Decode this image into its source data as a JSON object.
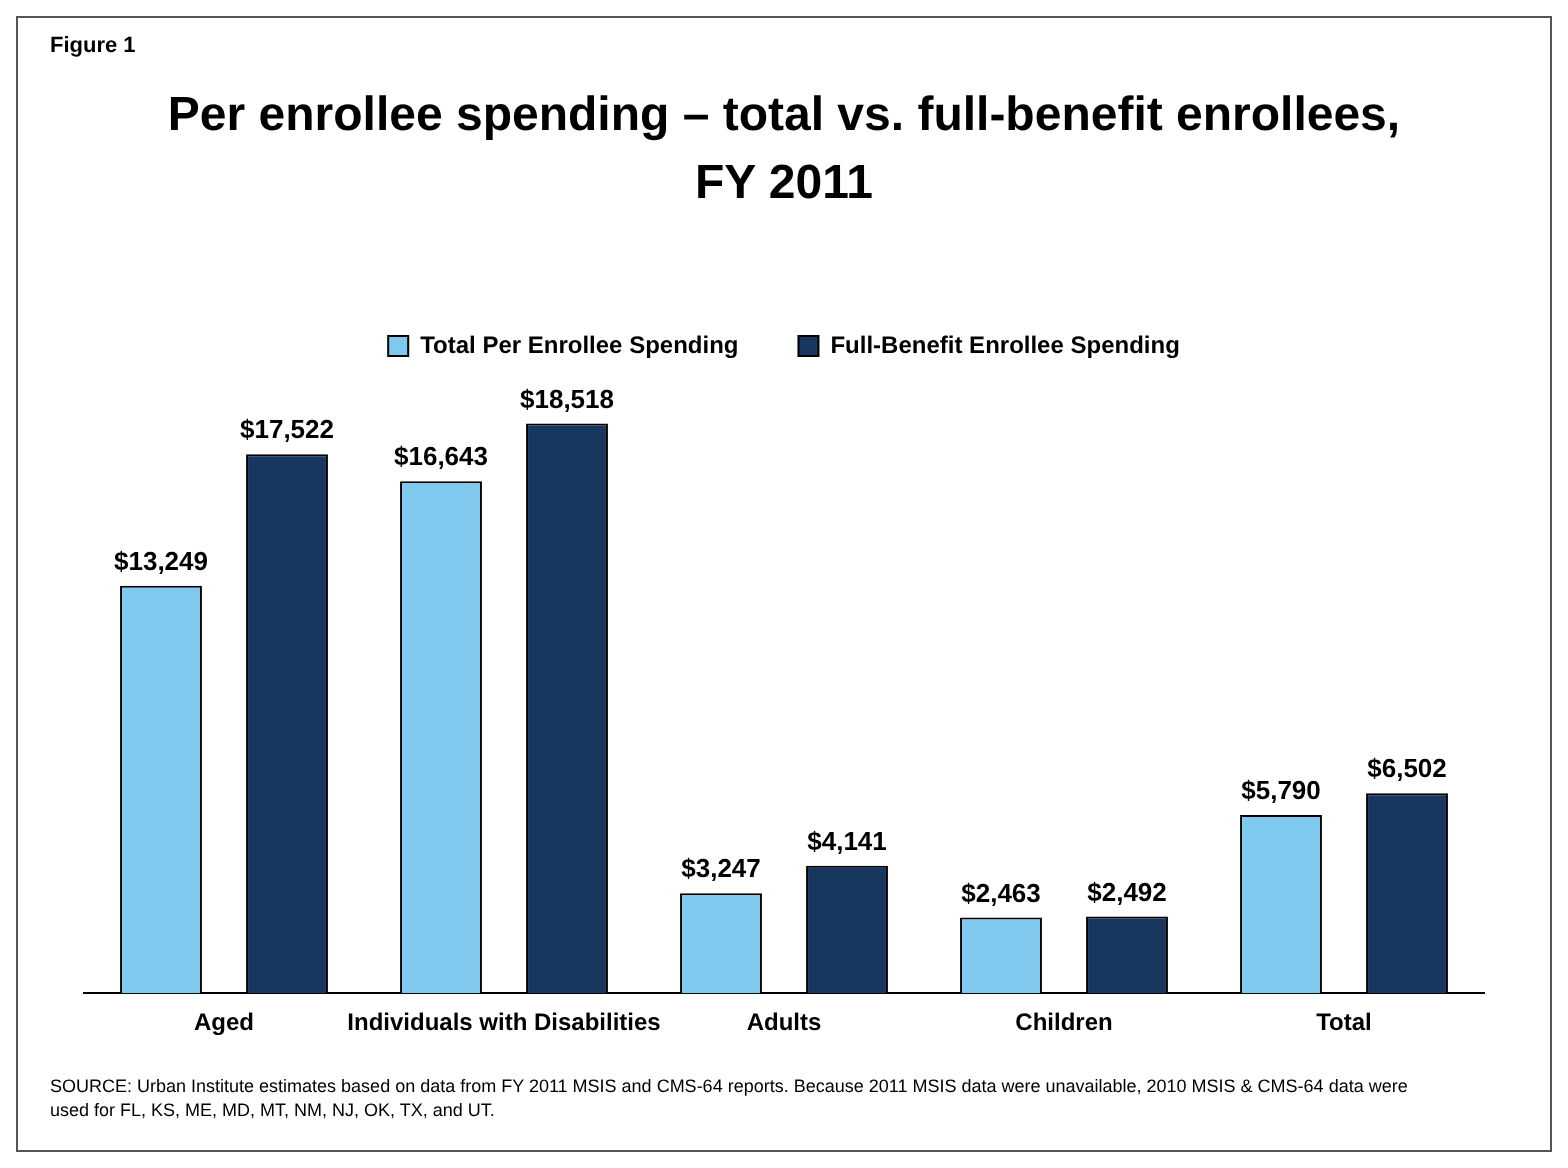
{
  "chart_data": {
    "type": "bar",
    "title": "Per enrollee spending – total vs. full-benefit enrollees, FY 2011",
    "categories": [
      "Aged",
      "Individuals with Disabilities",
      "Adults",
      "Children",
      "Total"
    ],
    "series": [
      {
        "name": "Total Per Enrollee Spending",
        "color": "#7fc8ee",
        "values": [
          13249,
          16643,
          3247,
          2463,
          5790
        ],
        "value_labels": [
          "$13,249",
          "$16,643",
          "$3,247",
          "$2,463",
          "$5,790"
        ]
      },
      {
        "name": "Full-Benefit Enrollee Spending",
        "color": "#17375e",
        "values": [
          17522,
          18518,
          4141,
          2492,
          6502
        ],
        "value_labels": [
          "$17,522",
          "$18,518",
          "$4,141",
          "$2,492",
          "$6,502"
        ]
      }
    ],
    "legend": "top",
    "grid": false,
    "annotations": [
      "Figure 1",
      "SOURCE: Urban Institute estimates based on data from FY 2011 MSIS and CMS-64 reports. Because 2011 MSIS data were unavailable, 2010 MSIS & CMS-64 data were used for FL, KS, ME, MD, MT, NM, NJ, OK, TX, and UT."
    ]
  }
}
